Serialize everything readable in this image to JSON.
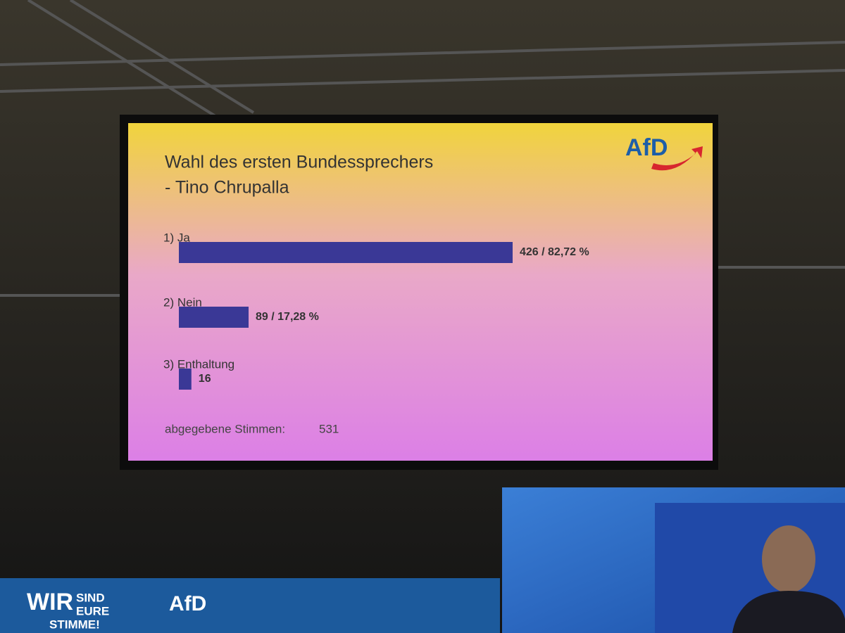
{
  "chart_data": {
    "type": "bar",
    "orientation": "horizontal",
    "title": "Wahl des ersten Bundessprechers",
    "subtitle": "- Tino Chrupalla",
    "logo": "AfD",
    "categories": [
      "1) Ja",
      "2) Nein",
      "3) Enthaltung"
    ],
    "values": [
      426,
      89,
      16
    ],
    "value_labels": [
      "426 / 82,72 %",
      "89 / 17,28 %",
      "16"
    ],
    "color": "#3a3896",
    "footer_label": "abgegebene Stimmen:",
    "footer_value": 531
  },
  "banner": {
    "words": [
      "WIR",
      "SIND",
      "EURE",
      "STIMME!"
    ],
    "logo": "AfD"
  }
}
